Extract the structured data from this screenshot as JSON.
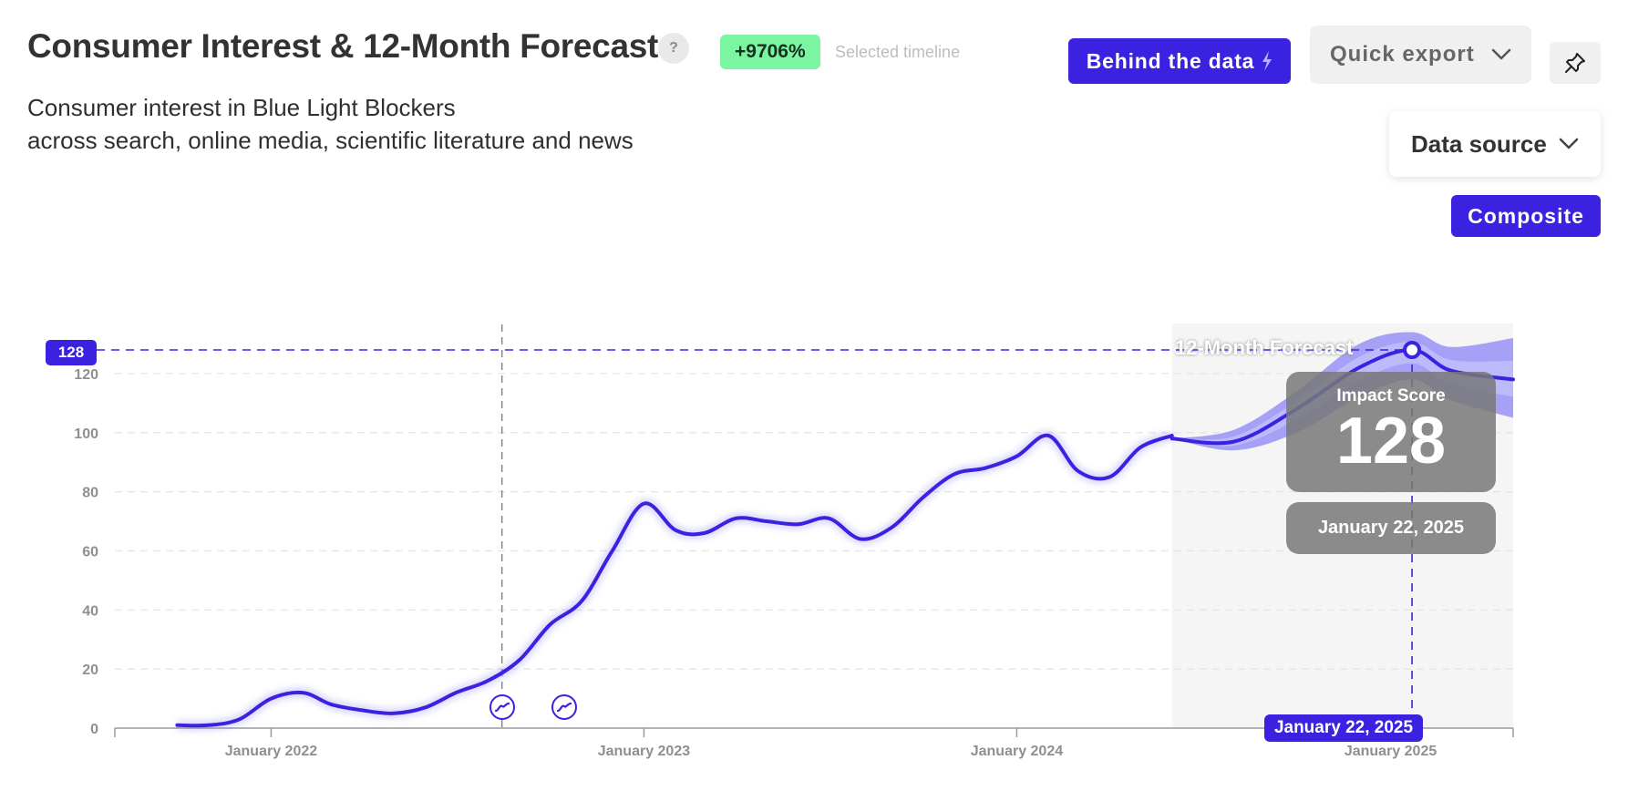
{
  "header": {
    "title": "Consumer Interest & 12-Month Forecast",
    "help_label": "?",
    "growth_badge": "+9706%",
    "growth_caption": "Selected timeline",
    "subtitle_line1": "Consumer interest in Blue Light Blockers",
    "subtitle_line2": "across search, online media, scientific literature and news"
  },
  "toolbar": {
    "behind_data_label": "Behind the data",
    "quick_export_label": "Quick export",
    "data_source_label": "Data source",
    "composite_label": "Composite"
  },
  "colors": {
    "accent": "#3b22e0",
    "badge": "#7cf5a3",
    "forecast_band": "#9d97f7",
    "forecast_band_inner": "#c0bcfb",
    "forecast_bg": "#f5f5f5"
  },
  "icons": {
    "help": "question-icon",
    "behind_data": "lightning-icon",
    "export": "chevron-down-icon",
    "pin": "pin-icon",
    "data_source": "chevron-down-icon",
    "events": "trend-event-icon"
  },
  "tooltip": {
    "label": "Impact Score",
    "value": "128",
    "date": "January 22, 2025"
  },
  "crosshair": {
    "y_label": "128",
    "x_label": "January 22, 2025"
  },
  "chart_data": {
    "type": "line",
    "title": "",
    "xlabel": "",
    "ylabel": "",
    "ylim": [
      0,
      128
    ],
    "yticks": [
      0,
      20,
      40,
      60,
      80,
      100,
      120
    ],
    "xtick_labels": [
      "January 2022",
      "January 2023",
      "January 2024",
      "January 2025"
    ],
    "xlim": [
      "2021-08-01",
      "2025-05-01"
    ],
    "grid": true,
    "forecast_region_label": "12-Month Forecast",
    "forecast_start": "2024-06-01",
    "reference_date": "2022-08-15",
    "event_markers": [
      "2022-08-15",
      "2022-10-15"
    ],
    "series": [
      {
        "name": "",
        "x": [
          "2021-10-01",
          "2021-11-01",
          "2021-12-01",
          "2022-01-01",
          "2022-02-01",
          "2022-03-01",
          "2022-04-01",
          "2022-05-01",
          "2022-06-01",
          "2022-07-01",
          "2022-08-01",
          "2022-09-01",
          "2022-10-01",
          "2022-11-01",
          "2022-12-01",
          "2023-01-01",
          "2023-02-01",
          "2023-03-01",
          "2023-04-01",
          "2023-05-01",
          "2023-06-01",
          "2023-07-01",
          "2023-08-01",
          "2023-09-01",
          "2023-10-01",
          "2023-11-01",
          "2023-12-01",
          "2024-01-01",
          "2024-02-01",
          "2024-03-01",
          "2024-04-01",
          "2024-05-01",
          "2024-06-01"
        ],
        "values": [
          1,
          1,
          3,
          10,
          12,
          8,
          6,
          5,
          7,
          12,
          16,
          23,
          35,
          43,
          60,
          76,
          67,
          66,
          71,
          70,
          69,
          71,
          64,
          68,
          78,
          86,
          88,
          92,
          99,
          87,
          85,
          95,
          99
        ]
      },
      {
        "name": "12-Month Forecast",
        "x": [
          "2024-06-01",
          "2024-08-01",
          "2024-10-01",
          "2024-12-01",
          "2025-01-22",
          "2025-03-01",
          "2025-05-01"
        ],
        "values": [
          98,
          97,
          108,
          122,
          128,
          121,
          118
        ],
        "upper": [
          98,
          101,
          114,
          130,
          134,
          129,
          132
        ],
        "lower": [
          98,
          94,
          100,
          112,
          118,
          111,
          105
        ]
      }
    ]
  }
}
